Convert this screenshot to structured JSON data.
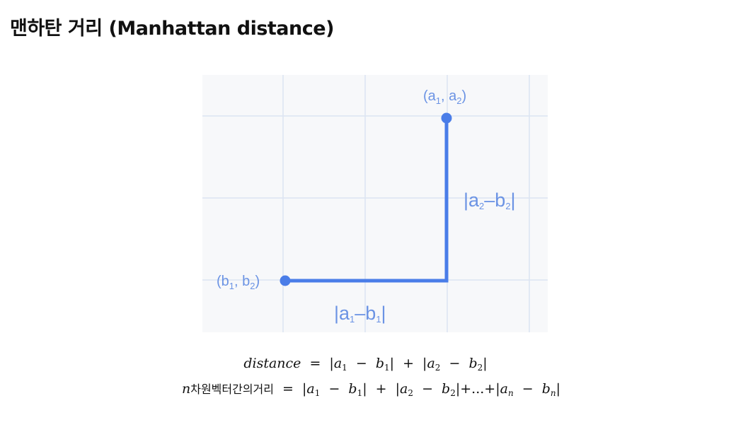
{
  "title": "맨하탄 거리 (Manhattan distance)",
  "figure": {
    "point_a": {
      "label_open": "(a",
      "sub1": "1",
      "label_mid": ", a",
      "sub2": "2",
      "label_close": ")"
    },
    "point_b": {
      "label_open": "(b",
      "sub1": "1",
      "label_mid": ", b",
      "sub2": "2",
      "label_close": ")"
    },
    "vertical_label": {
      "bar1": "|a",
      "sub1": "2",
      "minus": "–b",
      "sub2": "2",
      "bar2": "|"
    },
    "horizontal_label": {
      "bar1": "|a",
      "sub1": "1",
      "minus": "–b",
      "sub2": "1",
      "bar2": "|"
    },
    "colors": {
      "line": "#4a7de8",
      "grid": "#dce4f2",
      "label": "#6b93e4",
      "background": "#f7f8fa"
    }
  },
  "formula1": {
    "lhs": "distance",
    "eq": "=",
    "t1_bar": "|a",
    "t1_sub": "1",
    "t1_minus": "−",
    "t1_b": "b",
    "t1_bsub": "1",
    "t1_close": "|",
    "plus": "+",
    "t2_bar": "|a",
    "t2_sub": "2",
    "t2_minus": "−",
    "t2_b": "b",
    "t2_bsub": "2",
    "t2_close": "|"
  },
  "formula2": {
    "lhs_n": "n",
    "lhs_text": "차원벡터간의거리",
    "eq": "=",
    "t1_bar": "|a",
    "t1_sub": "1",
    "t1_minus": "−",
    "t1_b": "b",
    "t1_bsub": "1",
    "t1_close": "|",
    "plus": "+",
    "t2_bar": "|a",
    "t2_sub": "2",
    "t2_minus": "−",
    "t2_b": "b",
    "t2_bsub": "2",
    "t2_close": "|+...+",
    "tn_bar": "|a",
    "tn_sub": "n",
    "tn_minus": "−",
    "tn_b": "b",
    "tn_bsub": "n",
    "tn_close": "|"
  }
}
